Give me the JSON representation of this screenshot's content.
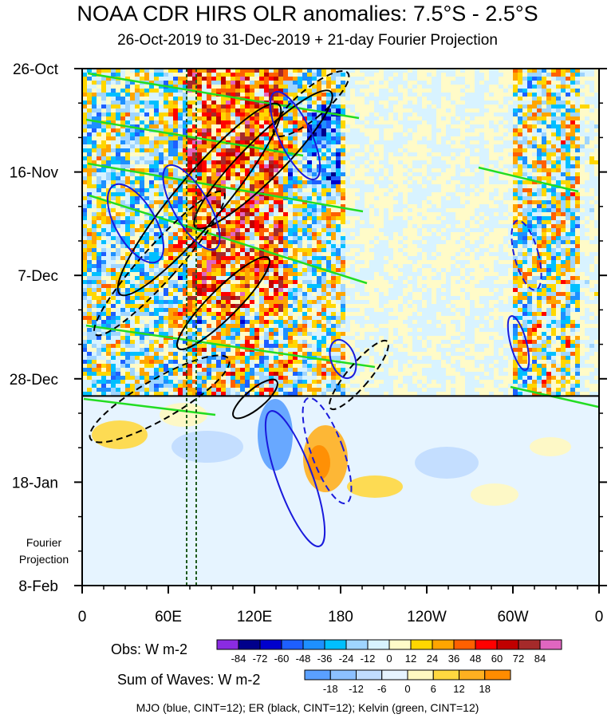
{
  "title": "NOAA CDR HIRS OLR anomalies: 7.5°S - 2.5°S",
  "subtitle": "26-Oct-2019 to 31-Dec-2019 + 21-day Fourier Projection",
  "projection_note": [
    "Fourier",
    "Projection"
  ],
  "footer": "MJO (blue, CINT=12); ER (black, CINT=12); Kelvin (green, CINT=12)",
  "chart_data": {
    "type": "heatmap",
    "title": "NOAA CDR HIRS OLR anomalies: 7.5°S - 2.5°S",
    "subtitle": "26-Oct-2019 to 31-Dec-2019 + 21-day Fourier Projection",
    "x_axis": {
      "ticks": [
        "0",
        "60E",
        "120E",
        "180",
        "120W",
        "60W",
        "0"
      ],
      "longitude_range": [
        0,
        360
      ]
    },
    "y_axis": {
      "ticks": [
        "26-Oct",
        "16-Nov",
        "7-Dec",
        "28-Dec",
        "18-Jan",
        "8-Feb"
      ],
      "date_range": [
        "2019-10-26",
        "2020-02-08"
      ],
      "direction": "downward"
    },
    "observation_end_date": "2019-12-31",
    "obs_colorbar": {
      "label": "Obs: W m-2",
      "levels": [
        -84,
        -72,
        -60,
        -48,
        -36,
        -24,
        -12,
        0,
        12,
        24,
        36,
        48,
        60,
        72,
        84
      ],
      "colors": [
        "#8a2be2",
        "#00008b",
        "#0000cd",
        "#1e5fff",
        "#1e90ff",
        "#00bfff",
        "#9fd5ff",
        "#d8f3ff",
        "#fffbc8",
        "#ffd700",
        "#ffa500",
        "#ff6000",
        "#ff0000",
        "#c00000",
        "#a52a2a",
        "#e066c0"
      ]
    },
    "waves_colorbar": {
      "label": "Sum of Waves: W m-2",
      "levels": [
        -18,
        -12,
        -6,
        0,
        6,
        12,
        18
      ],
      "colors": [
        "#5aa0ff",
        "#8cc0ff",
        "#c0dcff",
        "#e6f4ff",
        "#fff8c0",
        "#ffd840",
        "#ffb020",
        "#ff8c00"
      ]
    },
    "contours": [
      {
        "wave": "MJO",
        "color": "blue",
        "cint": 12
      },
      {
        "wave": "ER",
        "color": "black",
        "cint": 12
      },
      {
        "wave": "Kelvin",
        "color": "green",
        "cint": 12
      }
    ]
  },
  "colors": {
    "mjo": "#1a1adc",
    "er": "#000000",
    "kelvin": "#22dd22",
    "frame": "#000000",
    "background_projection": "#fffbd6"
  }
}
